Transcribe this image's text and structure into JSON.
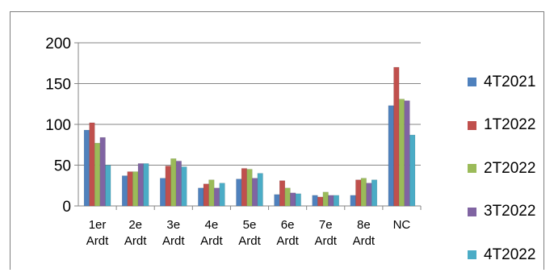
{
  "chart_data": {
    "type": "bar",
    "categories": [
      {
        "line1": "1er",
        "line2": "Ardt"
      },
      {
        "line1": "2e",
        "line2": "Ardt"
      },
      {
        "line1": "3e",
        "line2": "Ardt"
      },
      {
        "line1": "4e",
        "line2": "Ardt"
      },
      {
        "line1": "5e",
        "line2": "Ardt"
      },
      {
        "line1": "6e",
        "line2": "Ardt"
      },
      {
        "line1": "7e",
        "line2": "Ardt"
      },
      {
        "line1": "8e",
        "line2": "Ardt"
      },
      {
        "line1": "NC",
        "line2": ""
      }
    ],
    "series": [
      {
        "name": "4T2021",
        "color": "#4f81bd",
        "values": [
          93,
          37,
          34,
          22,
          33,
          14,
          13,
          13,
          123
        ]
      },
      {
        "name": "1T2022",
        "color": "#c0504d",
        "values": [
          102,
          42,
          49,
          27,
          46,
          31,
          11,
          32,
          170
        ]
      },
      {
        "name": "2T2022",
        "color": "#9bbb59",
        "values": [
          77,
          42,
          58,
          32,
          45,
          22,
          17,
          34,
          131
        ]
      },
      {
        "name": "3T2022",
        "color": "#8064a2",
        "values": [
          84,
          52,
          55,
          22,
          34,
          16,
          13,
          28,
          129
        ]
      },
      {
        "name": "4T2022",
        "color": "#4bacc6",
        "values": [
          50,
          52,
          48,
          28,
          40,
          15,
          13,
          32,
          87
        ]
      }
    ],
    "yticks": [
      0,
      50,
      100,
      150,
      200
    ],
    "ylim": [
      0,
      200
    ],
    "grid": true,
    "legend_position": "right"
  }
}
